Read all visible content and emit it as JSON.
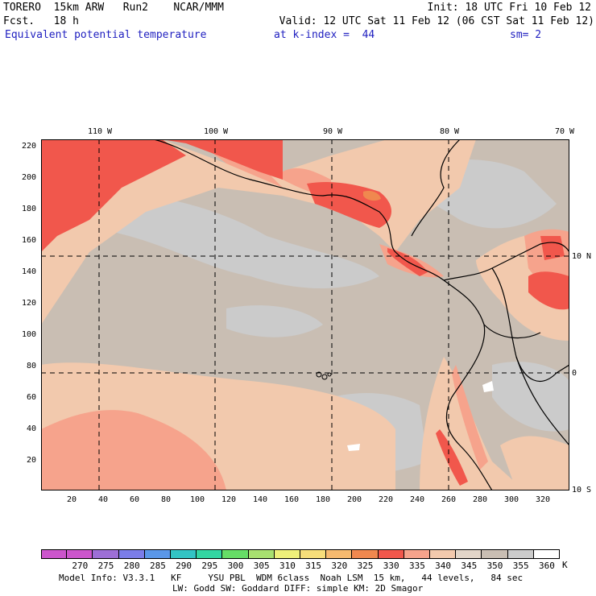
{
  "header": {
    "model_line": "TORERO  15km ARW   Run2    NCAR/MMM",
    "forecast_line": "Fcst.   18 h",
    "init": "Init: 18 UTC Fri 10 Feb 12",
    "valid": "Valid: 12 UTC Sat 11 Feb 12 (06 CST Sat 11 Feb 12)",
    "field_name": "Equivalent potential temperature",
    "level": "at k-index =  44",
    "smoothing": "sm= 2"
  },
  "map": {
    "y_ticks": [
      "220",
      "200",
      "180",
      "160",
      "140",
      "120",
      "100",
      "80",
      "60",
      "40",
      "20"
    ],
    "x_ticks": [
      "20",
      "40",
      "60",
      "80",
      "100",
      "120",
      "140",
      "160",
      "180",
      "200",
      "220",
      "240",
      "260",
      "280",
      "300",
      "320"
    ],
    "lon_labels": [
      "110 W",
      "100 W",
      "90 W",
      "80 W",
      "70 W"
    ],
    "lat_labels": [
      "10 N",
      "0",
      "10 S"
    ],
    "colors": {
      "background_field": "#c9beb3",
      "gray_field": "#cbcbcb",
      "field_340": "#f2c9ad",
      "field_335": "#f6a38c",
      "field_330": "#f1574c",
      "field_325": "#f0884f",
      "coast_line": "#000000"
    }
  },
  "colorbar": {
    "labels": [
      "270",
      "275",
      "280",
      "285",
      "290",
      "295",
      "300",
      "305",
      "310",
      "315",
      "320",
      "325",
      "330",
      "335",
      "340",
      "345",
      "350",
      "355",
      "360"
    ],
    "unit": "K",
    "colors": [
      "#cc55cc",
      "#9d6fd6",
      "#7b7de8",
      "#5a97e8",
      "#33c4c4",
      "#33d6a2",
      "#66dd66",
      "#a8e070",
      "#eef07a",
      "#f7de7a",
      "#f6ba6f",
      "#f0884f",
      "#f1574c",
      "#f6a38c",
      "#f2c9ad",
      "#e2d5c8",
      "#c9beb3",
      "#cbcbcb",
      "#ffffff"
    ]
  },
  "footer": {
    "line1": "Model Info: V3.3.1   KF     YSU PBL  WDM 6class  Noah LSM  15 km,   44 levels,   84 sec",
    "line2": "LW: Godd SW: Goddard DIFF: simple KM: 2D Smagor"
  }
}
